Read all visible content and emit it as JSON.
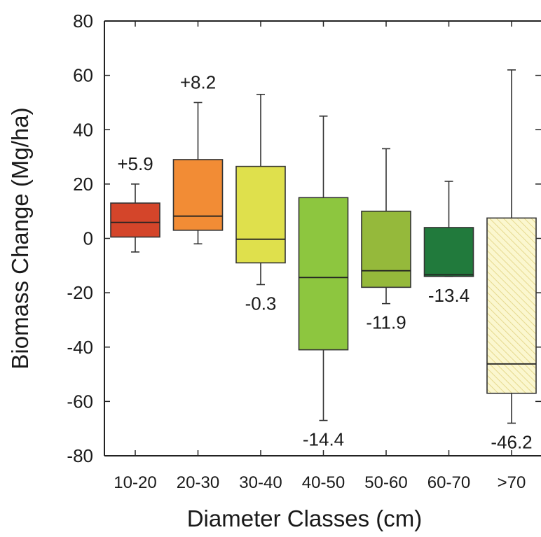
{
  "chart_data": {
    "type": "box",
    "title": "",
    "xlabel": "Diameter Classes (cm)",
    "ylabel": "Biomass Change (Mg/ha)",
    "ylim": [
      -80,
      80
    ],
    "yticks": [
      80,
      60,
      40,
      20,
      0,
      -20,
      -40,
      -60,
      -80
    ],
    "ytick_labels": [
      "80",
      "60",
      "40",
      "20",
      "0",
      "-20",
      "-40",
      "-60",
      "-80"
    ],
    "grid": false,
    "legend": "none",
    "categories": [
      "10-20",
      "20-30",
      "30-40",
      "40-50",
      "50-60",
      "60-70",
      ">70"
    ],
    "boxes": [
      {
        "category": "10-20",
        "whisker_low": -5,
        "q1": 0.5,
        "median": 5.9,
        "q3": 13,
        "whisker_high": 20,
        "label": "+5.9",
        "color": "#d4452a",
        "hatched": false
      },
      {
        "category": "20-30",
        "whisker_low": -2,
        "q1": 3,
        "median": 8.2,
        "q3": 29,
        "whisker_high": 50,
        "label": "+8.2",
        "color": "#f28c35",
        "hatched": false
      },
      {
        "category": "30-40",
        "whisker_low": -17,
        "q1": -9,
        "median": -0.3,
        "q3": 26.5,
        "whisker_high": 53,
        "label": "-0.3",
        "color": "#dfe04c",
        "hatched": false
      },
      {
        "category": "40-50",
        "whisker_low": -67,
        "q1": -41,
        "median": -14.4,
        "q3": 15,
        "whisker_high": 45,
        "label": "-14.4",
        "color": "#8dc63f",
        "hatched": false
      },
      {
        "category": "50-60",
        "whisker_low": -24,
        "q1": -18,
        "median": -11.9,
        "q3": 10,
        "whisker_high": 33,
        "label": "-11.9",
        "color": "#95b93b",
        "hatched": false
      },
      {
        "category": "60-70",
        "whisker_low": -14,
        "q1": -14,
        "median": -13.4,
        "q3": 4,
        "whisker_high": 21,
        "label": "-13.4",
        "color": "#217a3c",
        "hatched": false
      },
      {
        "category": ">70",
        "whisker_low": -68,
        "q1": -57,
        "median": -46.2,
        "q3": 7.5,
        "whisker_high": 62,
        "label": "-46.2",
        "color": "#f7f3c2",
        "hatched": true
      }
    ]
  }
}
